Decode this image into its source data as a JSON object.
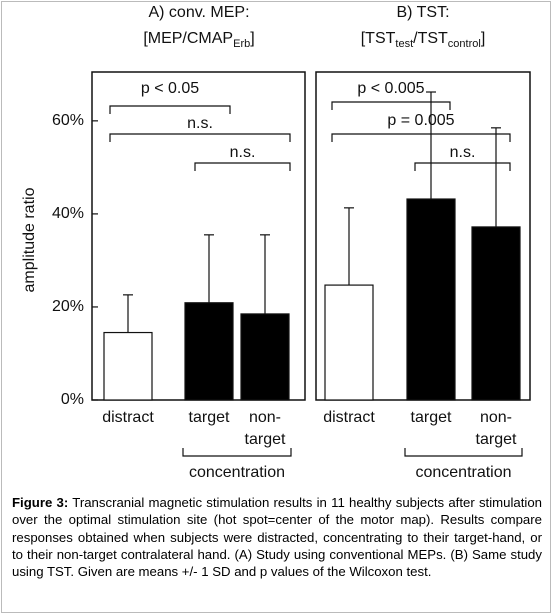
{
  "chart_data": [
    {
      "type": "bar",
      "title": "A) conv. MEP:",
      "subtitle": [
        "[MEP/CMAP",
        "Erb",
        "]"
      ],
      "ylabel": "amplitude ratio",
      "categories": [
        "distract",
        "target",
        [
          "non-",
          "target"
        ]
      ],
      "group_label": "concentration",
      "values": [
        14.5,
        20.9,
        18.5
      ],
      "errors": [
        8.1,
        14.6,
        17.0
      ],
      "colors": [
        "#ffffff",
        "#000000",
        "#000000"
      ],
      "ylim": [
        0,
        70.5
      ],
      "yticks": [
        {
          "value": 0,
          "label": "0%"
        },
        {
          "value": 20,
          "label": "20%"
        },
        {
          "value": 40,
          "label": "40%"
        },
        {
          "value": 60,
          "label": "60%"
        }
      ],
      "annotations": [
        "p < 0.05",
        "n.s.",
        "n.s."
      ]
    },
    {
      "type": "bar",
      "title": "B) TST:",
      "subtitle": [
        "[TST",
        "test",
        "/TST",
        "control",
        "]"
      ],
      "categories": [
        "distract",
        "target",
        [
          "non-",
          "target"
        ]
      ],
      "group_label": "concentration",
      "values": [
        24.7,
        43.2,
        37.2
      ],
      "errors": [
        16.6,
        23.0,
        21.3
      ],
      "colors": [
        "#ffffff",
        "#000000",
        "#000000"
      ],
      "ylim": [
        0,
        70.5
      ],
      "annotations": [
        "p < 0.005",
        "p = 0.005",
        "n.s."
      ]
    }
  ],
  "caption": {
    "label": "Figure 3:",
    "text": "Transcranial magnetic stimulation results in 11 healthy subjects after stimulation over the optimal stimulation site (hot spot=center of the motor map). Results compare responses obtained when subjects were distracted, concentrating to their target-hand, or to their non-target contralateral hand. (A) Study using conventional MEPs. (B) Same study using TST. Given are means +/- 1 SD and p values of the Wilcoxon test."
  }
}
